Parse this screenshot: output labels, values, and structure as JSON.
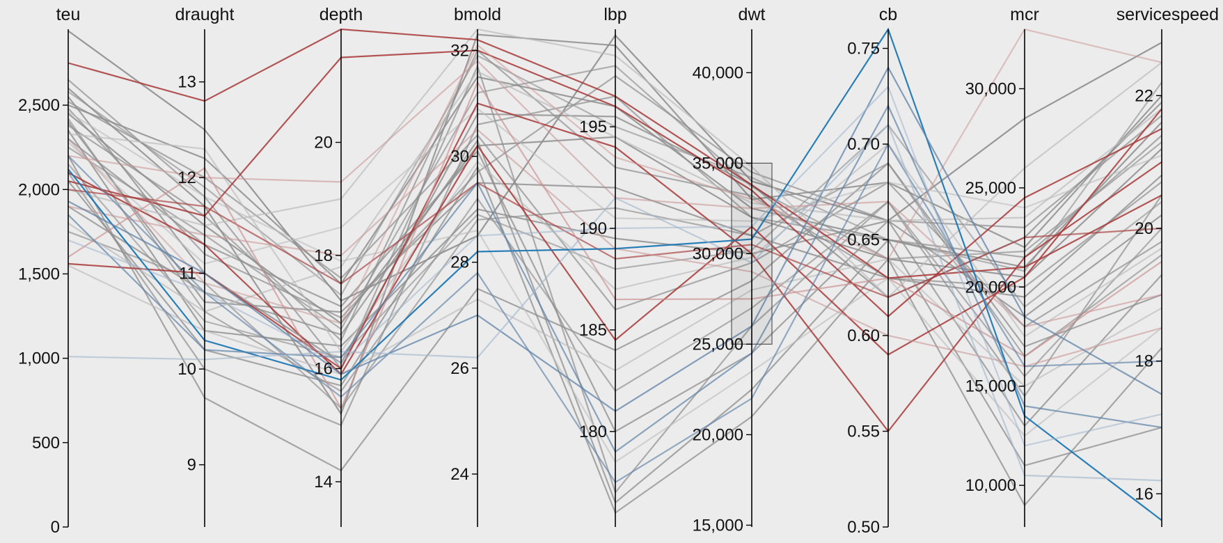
{
  "chart_data": {
    "type": "parallel-coordinates",
    "axes": [
      {
        "name": "teu",
        "label": "teu",
        "domain": [
          0,
          2950
        ],
        "ticks": [
          0,
          500,
          1000,
          1500,
          2000,
          2500
        ],
        "tick_labels": [
          "0",
          "500",
          "1,000",
          "1,500",
          "2,000",
          "2,500"
        ]
      },
      {
        "name": "draught",
        "label": "draught",
        "domain": [
          8.35,
          13.55
        ],
        "ticks": [
          9,
          10,
          11,
          12,
          13
        ],
        "tick_labels": [
          "9",
          "10",
          "11",
          "12",
          "13"
        ]
      },
      {
        "name": "depth",
        "label": "depth",
        "domain": [
          13.2,
          22.0
        ],
        "ticks": [
          14,
          16,
          18,
          20
        ],
        "tick_labels": [
          "14",
          "16",
          "18",
          "20"
        ]
      },
      {
        "name": "bmold",
        "label": "bmold",
        "domain": [
          23.0,
          32.4
        ],
        "ticks": [
          24,
          26,
          28,
          30,
          32
        ],
        "tick_labels": [
          "24",
          "26",
          "28",
          "30",
          "32"
        ]
      },
      {
        "name": "lbp",
        "label": "lbp",
        "domain": [
          175.3,
          199.8
        ],
        "ticks": [
          180,
          185,
          190,
          195
        ],
        "tick_labels": [
          "180",
          "185",
          "190",
          "195"
        ]
      },
      {
        "name": "dwt",
        "label": "dwt",
        "domain": [
          14900,
          42400
        ],
        "ticks": [
          15000,
          20000,
          25000,
          30000,
          35000,
          40000
        ],
        "tick_labels": [
          "15,000",
          "20,000",
          "25,000",
          "30,000",
          "35,000",
          "40,000"
        ]
      },
      {
        "name": "cb",
        "label": "cb",
        "domain": [
          0.5,
          0.76
        ],
        "ticks": [
          0.5,
          0.55,
          0.6,
          0.65,
          0.7,
          0.75
        ],
        "tick_labels": [
          "0.50",
          "0.55",
          "0.60",
          "0.65",
          "0.70",
          "0.75"
        ]
      },
      {
        "name": "mcr",
        "label": "mcr",
        "domain": [
          7900,
          33000
        ],
        "ticks": [
          10000,
          15000,
          20000,
          25000,
          30000
        ],
        "tick_labels": [
          "10,000",
          "15,000",
          "20,000",
          "25,000",
          "30,000"
        ]
      },
      {
        "name": "servicespeed",
        "label": "servicespeed",
        "domain": [
          15.5,
          23.0
        ],
        "ticks": [
          16,
          18,
          20,
          22
        ],
        "tick_labels": [
          "16",
          "18",
          "20",
          "22"
        ]
      }
    ],
    "brush": {
      "axis": "dwt",
      "range": [
        25000,
        35000
      ]
    },
    "colors": {
      "gray": "#8e8e8e",
      "light_gray": "#bcbcbc",
      "red": "#a83a3a",
      "light_red": "#c98f8f",
      "blue": "#1f78b4",
      "steel_blue": "#5f83a8",
      "light_blue": "#9eb4cc"
    },
    "series": [
      {
        "color": "red",
        "opacity": 0.85,
        "values": [
          2750,
          12.8,
          22.0,
          32.2,
          196.5,
          33800,
          0.63,
          21000,
          20.5
        ]
      },
      {
        "color": "red",
        "opacity": 0.85,
        "values": [
          1560,
          11.0,
          16.0,
          31.0,
          194.0,
          30000,
          0.55,
          21500,
          21.0
        ]
      },
      {
        "color": "red",
        "opacity": 0.85,
        "values": [
          2100,
          11.3,
          15.9,
          30.2,
          184.5,
          31500,
          0.59,
          20500,
          21.8
        ]
      },
      {
        "color": "red",
        "opacity": 0.85,
        "values": [
          2050,
          11.6,
          21.5,
          32.0,
          196.0,
          33500,
          0.61,
          24500,
          21.5
        ]
      },
      {
        "color": "red",
        "opacity": 0.65,
        "values": [
          2000,
          11.7,
          17.5,
          29.5,
          188.5,
          30500,
          0.62,
          22500,
          20.0
        ]
      },
      {
        "color": "light_red",
        "opacity": 0.65,
        "values": [
          1600,
          12.1,
          15.3,
          31.4,
          186.5,
          27500,
          0.63,
          16500,
          19.5
        ]
      },
      {
        "color": "light_red",
        "opacity": 0.55,
        "values": [
          2200,
          12.0,
          19.3,
          31.8,
          191.5,
          32500,
          0.67,
          18000,
          19.0
        ]
      },
      {
        "color": "light_red",
        "opacity": 0.55,
        "values": [
          1900,
          11.4,
          18.0,
          30.5,
          189.0,
          29000,
          0.6,
          16000,
          18.5
        ]
      },
      {
        "color": "light_red",
        "opacity": 0.5,
        "values": [
          2300,
          10.9,
          16.8,
          32.1,
          193.5,
          33000,
          0.64,
          33000,
          22.5
        ]
      },
      {
        "color": "blue",
        "opacity": 0.95,
        "values": [
          2120,
          10.3,
          15.8,
          28.2,
          189.0,
          30800,
          0.76,
          13500,
          15.6
        ]
      },
      {
        "color": "steel_blue",
        "opacity": 0.75,
        "values": [
          1930,
          11.0,
          15.9,
          27.0,
          181.0,
          26000,
          0.74,
          18500,
          17.5
        ]
      },
      {
        "color": "steel_blue",
        "opacity": 0.7,
        "values": [
          1850,
          10.2,
          16.2,
          29.5,
          179.0,
          24500,
          0.72,
          14000,
          17.0
        ]
      },
      {
        "color": "steel_blue",
        "opacity": 0.65,
        "values": [
          2200,
          10.8,
          15.5,
          27.8,
          177.5,
          22000,
          0.7,
          16000,
          18.0
        ]
      },
      {
        "color": "light_blue",
        "opacity": 0.6,
        "values": [
          1010,
          10.1,
          16.3,
          26.2,
          191.5,
          29500,
          0.71,
          10500,
          16.2
        ]
      },
      {
        "color": "light_blue",
        "opacity": 0.55,
        "values": [
          1700,
          10.8,
          16.1,
          28.5,
          190.0,
          31500,
          0.73,
          12000,
          17.2
        ]
      },
      {
        "color": "gray",
        "opacity": 0.9,
        "values": [
          2940,
          12.5,
          17.2,
          28.5,
          199.5,
          34000,
          0.66,
          28500,
          22.8
        ]
      },
      {
        "color": "gray",
        "opacity": 0.85,
        "values": [
          2600,
          11.7,
          15.2,
          32.3,
          199.0,
          33000,
          0.68,
          22000,
          22.0
        ]
      },
      {
        "color": "gray",
        "opacity": 0.85,
        "values": [
          2500,
          12.2,
          17.5,
          31.5,
          196.0,
          32500,
          0.65,
          21000,
          21.6
        ]
      },
      {
        "color": "gray",
        "opacity": 0.85,
        "values": [
          2450,
          11.5,
          16.8,
          30.2,
          194.5,
          32000,
          0.64,
          20500,
          21.2
        ]
      },
      {
        "color": "gray",
        "opacity": 0.8,
        "values": [
          2400,
          10.7,
          17.0,
          29.5,
          192.0,
          31000,
          0.63,
          19500,
          20.8
        ]
      },
      {
        "color": "gray",
        "opacity": 0.8,
        "values": [
          2350,
          10.4,
          16.4,
          29.0,
          189.5,
          30000,
          0.66,
          18500,
          20.2
        ]
      },
      {
        "color": "gray",
        "opacity": 0.8,
        "values": [
          2550,
          11.0,
          16.1,
          30.8,
          195.5,
          33800,
          0.62,
          22500,
          21.9
        ]
      },
      {
        "color": "gray",
        "opacity": 0.75,
        "values": [
          2200,
          9.7,
          14.2,
          27.5,
          184.0,
          28500,
          0.69,
          17000,
          19.0
        ]
      },
      {
        "color": "gray",
        "opacity": 0.75,
        "values": [
          2050,
          10.2,
          15.7,
          29.8,
          176.0,
          21000,
          0.64,
          9000,
          18.2
        ]
      },
      {
        "color": "gray",
        "opacity": 0.75,
        "values": [
          1900,
          10.8,
          16.6,
          30.3,
          176.5,
          22500,
          0.65,
          11000,
          17.0
        ]
      },
      {
        "color": "gray",
        "opacity": 0.75,
        "values": [
          2300,
          11.3,
          17.1,
          30.1,
          180.0,
          24500,
          0.66,
          13000,
          19.3
        ]
      },
      {
        "color": "gray",
        "opacity": 0.7,
        "values": [
          2650,
          11.8,
          16.0,
          31.7,
          177.0,
          26000,
          0.67,
          14500,
          20.5
        ]
      },
      {
        "color": "gray",
        "opacity": 0.7,
        "values": [
          2100,
          10.0,
          15.0,
          30.6,
          196.5,
          32000,
          0.65,
          21500,
          21.4
        ]
      },
      {
        "color": "gray",
        "opacity": 0.7,
        "values": [
          2480,
          11.2,
          16.9,
          29.7,
          197.5,
          34500,
          0.66,
          23000,
          21.7
        ]
      },
      {
        "color": "gray",
        "opacity": 0.7,
        "values": [
          2380,
          11.6,
          16.5,
          32.0,
          193.0,
          33200,
          0.63,
          20000,
          20.7
        ]
      },
      {
        "color": "gray",
        "opacity": 0.7,
        "values": [
          2520,
          12.0,
          17.6,
          30.4,
          186.0,
          29500,
          0.68,
          18000,
          19.8
        ]
      },
      {
        "color": "gray",
        "opacity": 0.65,
        "values": [
          1750,
          10.9,
          15.3,
          28.8,
          191.0,
          31000,
          0.69,
          16500,
          19.6
        ]
      },
      {
        "color": "gray",
        "opacity": 0.65,
        "values": [
          2250,
          11.4,
          16.7,
          31.2,
          198.0,
          33700,
          0.64,
          21800,
          21.3
        ]
      },
      {
        "color": "gray",
        "opacity": 0.65,
        "values": [
          2420,
          10.6,
          15.6,
          29.2,
          182.0,
          27000,
          0.67,
          15500,
          20.0
        ]
      },
      {
        "color": "gray",
        "opacity": 0.6,
        "values": [
          2580,
          11.9,
          17.3,
          31.9,
          195.0,
          34200,
          0.65,
          20800,
          22.2
        ]
      },
      {
        "color": "gray",
        "opacity": 0.6,
        "values": [
          2150,
          10.5,
          16.2,
          28.9,
          188.0,
          30200,
          0.71,
          19000,
          20.4
        ]
      },
      {
        "color": "light_gray",
        "opacity": 0.7,
        "values": [
          2000,
          11.5,
          19.0,
          32.4,
          198.5,
          34800,
          0.62,
          26000,
          22.5
        ]
      },
      {
        "color": "light_gray",
        "opacity": 0.7,
        "values": [
          1800,
          10.6,
          17.8,
          31.6,
          194.5,
          32800,
          0.66,
          23500,
          21.8
        ]
      },
      {
        "color": "light_gray",
        "opacity": 0.65,
        "values": [
          2330,
          12.3,
          16.3,
          29.9,
          187.0,
          29800,
          0.7,
          17500,
          19.7
        ]
      },
      {
        "color": "light_gray",
        "opacity": 0.65,
        "values": [
          1550,
          10.4,
          15.9,
          27.3,
          183.0,
          28000,
          0.64,
          15000,
          18.8
        ]
      },
      {
        "color": "light_gray",
        "opacity": 0.6,
        "values": [
          2280,
          11.1,
          18.5,
          30.9,
          190.5,
          31800,
          0.68,
          24000,
          21.1
        ]
      },
      {
        "color": "light_gray",
        "opacity": 0.6,
        "values": [
          2460,
          11.8,
          17.9,
          28.6,
          178.5,
          23500,
          0.63,
          12500,
          18.5
        ]
      }
    ]
  }
}
